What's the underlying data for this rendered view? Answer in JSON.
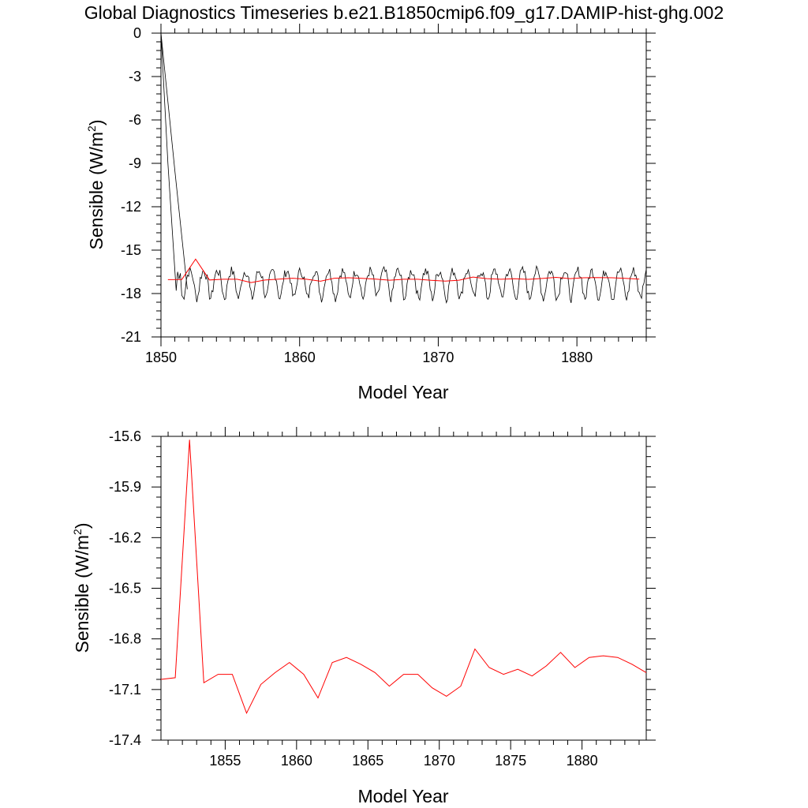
{
  "title": "Global Diagnostics Timeseries b.e21.B1850cmip6.f09_g17.DAMIP-hist-ghg.002",
  "colors": {
    "monthly": "#000000",
    "annual": "#ff0000"
  },
  "chart_data": [
    {
      "type": "line",
      "xlabel": "Model Year",
      "ylabel": "Sensible (W/m",
      "ylabel_sup": "2",
      "ylabel_close": ")",
      "xlim": [
        1850,
        1885
      ],
      "ylim": [
        -21,
        0
      ],
      "xticks": [
        1850,
        1860,
        1870,
        1880
      ],
      "xtick_labels": [
        "1850",
        "1860",
        "1870",
        "1880"
      ],
      "yticks": [
        0,
        -3,
        -6,
        -9,
        -12,
        -15,
        -18,
        -21
      ],
      "ytick_labels": [
        "0",
        "-3",
        "-6",
        "-9",
        "-12",
        "-15",
        "-18",
        "-21"
      ],
      "series": [
        {
          "kind": "monthly",
          "color": "#000000",
          "x": [
            1850.0,
            1850.5,
            1851.0,
            1851.1,
            1851.2,
            1851.3,
            1851.4
          ],
          "y": [
            0,
            -9,
            -16.4,
            -17.8,
            -16.5,
            -17.0,
            -16.6
          ],
          "generated_cycle": {
            "x_start": 1851.0,
            "x_end": 1885.0,
            "mean": -17.0,
            "amp_high": 0.8,
            "amp_low": 1.3
          }
        },
        {
          "kind": "monthly_second_trace",
          "color": "#000000",
          "x": [
            1850.0,
            1851.0,
            1851.9
          ],
          "y": [
            0,
            -9.5,
            -17.7
          ]
        },
        {
          "kind": "annual",
          "color": "#ff0000",
          "x": [
            1850.5,
            1851.5,
            1852.5,
            1853.5,
            1854.5,
            1855.5,
            1856.5,
            1857.5,
            1858.5,
            1859.5,
            1860.5,
            1861.5,
            1862.5,
            1863.5,
            1864.5,
            1865.5,
            1866.5,
            1867.5,
            1868.5,
            1869.5,
            1870.5,
            1871.5,
            1872.5,
            1873.5,
            1874.5,
            1875.5,
            1876.5,
            1877.5,
            1878.5,
            1879.5,
            1880.5,
            1881.5,
            1882.5,
            1883.5,
            1884.5
          ],
          "y": [
            -17.04,
            -17.03,
            -15.62,
            -17.06,
            -17.01,
            -17.01,
            -17.24,
            -17.07,
            -17.0,
            -16.94,
            -17.01,
            -17.15,
            -16.94,
            -16.91,
            -16.95,
            -17.0,
            -17.08,
            -17.01,
            -17.01,
            -17.09,
            -17.14,
            -17.08,
            -16.86,
            -16.97,
            -17.01,
            -16.98,
            -17.02,
            -16.96,
            -16.88,
            -16.97,
            -16.91,
            -16.9,
            -16.91,
            -16.95,
            -17.0
          ]
        }
      ]
    },
    {
      "type": "line",
      "xlabel": "Model Year",
      "ylabel": "Sensible (W/m",
      "ylabel_sup": "2",
      "ylabel_close": ")",
      "xlim": [
        1850.5,
        1884.5
      ],
      "ylim": [
        -17.4,
        -15.6
      ],
      "xticks": [
        1855,
        1860,
        1865,
        1870,
        1875,
        1880
      ],
      "xtick_labels": [
        "1855",
        "1860",
        "1865",
        "1870",
        "1875",
        "1880"
      ],
      "yticks": [
        -15.6,
        -15.9,
        -16.2,
        -16.5,
        -16.8,
        -17.1,
        -17.4
      ],
      "ytick_labels": [
        "-15.6",
        "-15.9",
        "-16.2",
        "-16.5",
        "-16.8",
        "-17.1",
        "-17.4"
      ],
      "series": [
        {
          "kind": "annual",
          "color": "#ff0000",
          "x": [
            1850.5,
            1851.5,
            1852.5,
            1853.5,
            1854.5,
            1855.5,
            1856.5,
            1857.5,
            1858.5,
            1859.5,
            1860.5,
            1861.5,
            1862.5,
            1863.5,
            1864.5,
            1865.5,
            1866.5,
            1867.5,
            1868.5,
            1869.5,
            1870.5,
            1871.5,
            1872.5,
            1873.5,
            1874.5,
            1875.5,
            1876.5,
            1877.5,
            1878.5,
            1879.5,
            1880.5,
            1881.5,
            1882.5,
            1883.5,
            1884.5
          ],
          "y": [
            -17.04,
            -17.03,
            -15.62,
            -17.06,
            -17.01,
            -17.01,
            -17.24,
            -17.07,
            -17.0,
            -16.94,
            -17.01,
            -17.15,
            -16.94,
            -16.91,
            -16.95,
            -17.0,
            -17.08,
            -17.01,
            -17.01,
            -17.09,
            -17.14,
            -17.08,
            -16.86,
            -16.97,
            -17.01,
            -16.98,
            -17.02,
            -16.96,
            -16.88,
            -16.97,
            -16.91,
            -16.9,
            -16.91,
            -16.95,
            -17.0
          ]
        }
      ]
    }
  ]
}
